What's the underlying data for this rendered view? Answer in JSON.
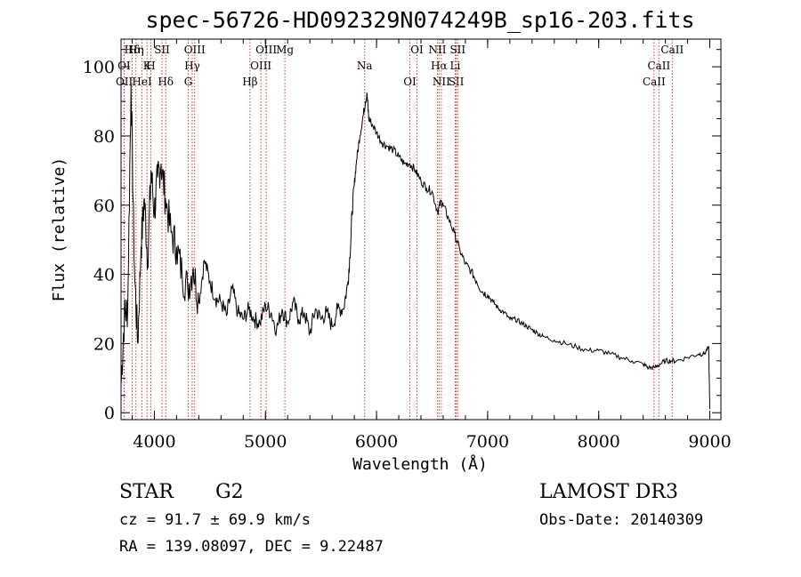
{
  "chart_data": {
    "type": "line",
    "title": "spec-56726-HD092329N074249B_sp16-203.fits",
    "xlabel": "Wavelength (Å)",
    "ylabel": "Flux (relative)",
    "xlim": [
      3700,
      9100
    ],
    "ylim": [
      -2,
      108
    ],
    "xticks": [
      4000,
      5000,
      6000,
      7000,
      8000,
      9000
    ],
    "yticks": [
      0,
      20,
      40,
      60,
      80,
      100
    ],
    "series": [
      {
        "name": "flux",
        "x": [
          3700,
          3730,
          3760,
          3790,
          3820,
          3850,
          3880,
          3910,
          3940,
          3970,
          4000,
          4030,
          4060,
          4100,
          4150,
          4200,
          4250,
          4300,
          4350,
          4400,
          4450,
          4500,
          4550,
          4600,
          4650,
          4700,
          4750,
          4800,
          4850,
          4900,
          4950,
          5000,
          5050,
          5100,
          5150,
          5200,
          5250,
          5300,
          5350,
          5400,
          5450,
          5500,
          5550,
          5600,
          5650,
          5700,
          5740,
          5760,
          5780,
          5800,
          5820,
          5850,
          5880,
          5900,
          5915,
          5930,
          5950,
          6000,
          6050,
          6100,
          6150,
          6200,
          6250,
          6300,
          6350,
          6400,
          6450,
          6500,
          6550,
          6580,
          6600,
          6650,
          6700,
          6750,
          6800,
          6850,
          6900,
          6950,
          7000,
          7050,
          7100,
          7150,
          7200,
          7250,
          7300,
          7350,
          7400,
          7450,
          7500,
          7600,
          7700,
          7800,
          7900,
          8000,
          8100,
          8200,
          8300,
          8400,
          8450,
          8500,
          8550,
          8600,
          8650,
          8700,
          8800,
          8900,
          8950,
          8990,
          9000
        ],
        "y": [
          8,
          28,
          30,
          95,
          42,
          20,
          48,
          62,
          44,
          70,
          58,
          68,
          72,
          62,
          52,
          48,
          40,
          36,
          42,
          32,
          44,
          38,
          33,
          32,
          28,
          36,
          29,
          27,
          30,
          27,
          26,
          31,
          29,
          24,
          30,
          26,
          32,
          27,
          29,
          23,
          30,
          27,
          29,
          25,
          30,
          30,
          37,
          45,
          58,
          66,
          73,
          80,
          86,
          90,
          92,
          85,
          84,
          81,
          78,
          77,
          76,
          74,
          72,
          72,
          70,
          67,
          65,
          64,
          58,
          61,
          60,
          56,
          52,
          47,
          43,
          41,
          38,
          35,
          34,
          32,
          30,
          29,
          27,
          27,
          26,
          25,
          24,
          23,
          22,
          21,
          20,
          19,
          18,
          18,
          17,
          16,
          15,
          14,
          13,
          13,
          14,
          15,
          15,
          15,
          16,
          17,
          17,
          19,
          1
        ]
      }
    ],
    "lines": [
      {
        "label": "Hδ",
        "x": 3800
      },
      {
        "label": "K",
        "x": 3934
      },
      {
        "label": "Hδ",
        "x": 4102
      },
      {
        "label": "OIII",
        "x": 4363
      },
      {
        "label": "OI",
        "x": 3727
      },
      {
        "label": "HeI",
        "x": 3889
      },
      {
        "label": "SII",
        "x": 4069
      },
      {
        "label": "Hγ",
        "x": 4341
      },
      {
        "label": "OII",
        "x": 3729
      },
      {
        "label": "Hη",
        "x": 3835
      },
      {
        "label": "H",
        "x": 3968
      },
      {
        "label": "G",
        "x": 4305
      },
      {
        "label": "OIII",
        "x": 5007
      },
      {
        "label": "OIII",
        "x": 4959
      },
      {
        "label": "Hβ",
        "x": 4861
      },
      {
        "label": "Mg",
        "x": 5175
      },
      {
        "label": "Na",
        "x": 5893
      },
      {
        "label": "OI",
        "x": 6300
      },
      {
        "label": "OI",
        "x": 6364
      },
      {
        "label": "Hα",
        "x": 6563
      },
      {
        "label": "SII",
        "x": 6717
      },
      {
        "label": "NII",
        "x": 6548
      },
      {
        "label": "Li",
        "x": 6708
      },
      {
        "label": "NII",
        "x": 6583
      },
      {
        "label": "SII",
        "x": 6731
      },
      {
        "label": "CaII",
        "x": 8542
      },
      {
        "label": "CaII",
        "x": 8498
      },
      {
        "label": "CaII",
        "x": 8662
      }
    ]
  },
  "info": {
    "object_class": "STAR",
    "subclass": "G2",
    "survey": "LAMOST DR3",
    "redshift": "cz =  91.7 ± 69.9 km/s",
    "obs_date": "Obs-Date: 20140309",
    "coords": "RA = 139.08097, DEC =    9.22487"
  }
}
